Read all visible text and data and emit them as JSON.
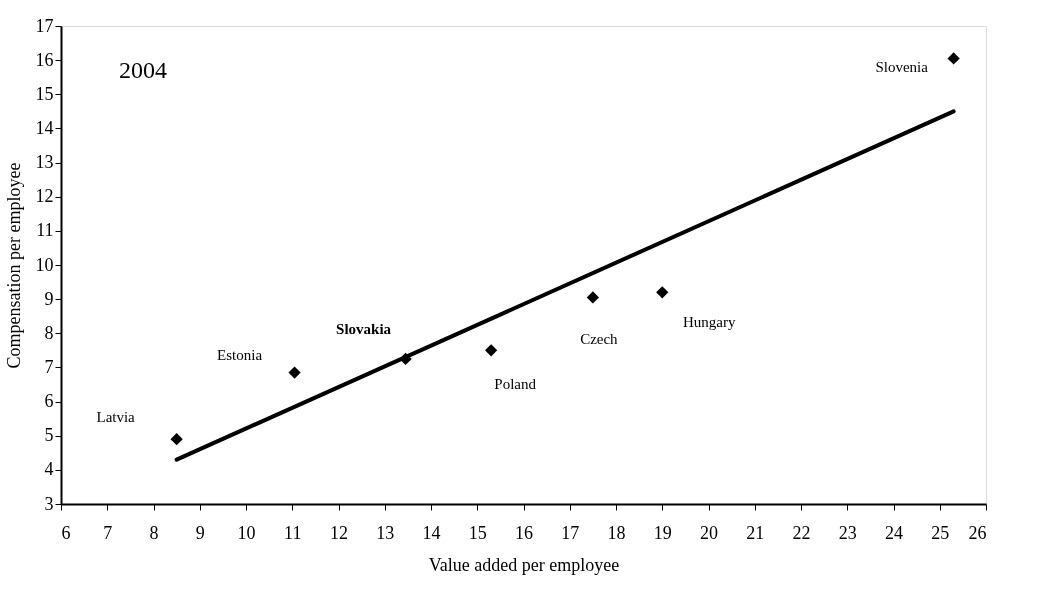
{
  "chart_data": {
    "type": "scatter",
    "xlabel": "Value added per employee",
    "ylabel": "Compensation per employee",
    "xlim": [
      6,
      26
    ],
    "xticks": [
      6,
      7,
      8,
      9,
      10,
      11,
      12,
      13,
      14,
      15,
      16,
      17,
      18,
      19,
      20,
      21,
      22,
      23,
      24,
      25,
      26
    ],
    "ylim": [
      3,
      17
    ],
    "yticks": [
      3,
      4,
      5,
      6,
      7,
      8,
      9,
      10,
      11,
      12,
      13,
      14,
      15,
      16,
      17
    ],
    "grid": false,
    "series": [
      {
        "marker": "diamond",
        "color": "#000000",
        "x": [
          8.5,
          11.05,
          13.45,
          15.3,
          17.5,
          19.0,
          25.3
        ],
        "values": [
          4.9,
          6.85,
          7.25,
          7.5,
          9.05,
          9.2,
          16.05
        ]
      },
      {
        "type": "line",
        "color": "#000000",
        "line_style": "solid",
        "x": [
          8.5,
          25.3
        ],
        "values": [
          4.3,
          14.5
        ]
      }
    ],
    "annotations": [
      "2004",
      {
        "text": "Latvia",
        "x": 8.5,
        "y": 4.9
      },
      {
        "text": "Estonia",
        "x": 11.05,
        "y": 6.85
      },
      {
        "text": "Slovakia",
        "x": 13.45,
        "y": 7.25
      },
      {
        "text": "Poland",
        "x": 15.3,
        "y": 7.5
      },
      {
        "text": "Czech",
        "x": 17.5,
        "y": 9.05
      },
      {
        "text": "Hungary",
        "x": 19.0,
        "y": 9.2
      },
      {
        "text": "Slovenia",
        "x": 25.3,
        "y": 16.05
      }
    ]
  }
}
